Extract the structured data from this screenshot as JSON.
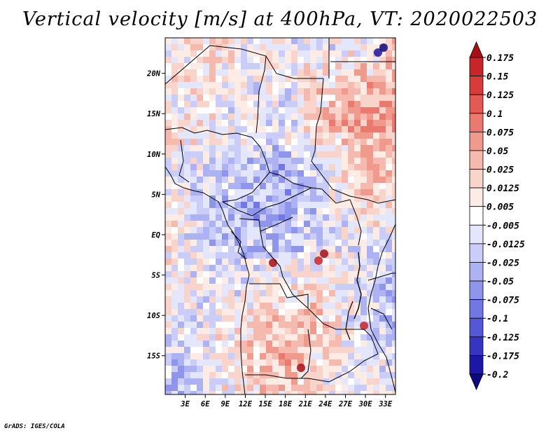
{
  "title": "Vertical velocity [m/s] at 400hPa, VT: 2020022503",
  "credit": "GrADS: IGES/COLA",
  "map": {
    "lat_labels": [
      "20N",
      "15N",
      "10N",
      "5N",
      "EQ",
      "5S",
      "10S",
      "15S"
    ],
    "lat_values": [
      20,
      15,
      10,
      5,
      0,
      -5,
      -10,
      -15
    ],
    "lon_labels": [
      "3E",
      "6E",
      "9E",
      "12E",
      "15E",
      "18E",
      "21E",
      "24E",
      "27E",
      "30E",
      "33E"
    ],
    "lon_values": [
      3,
      6,
      9,
      12,
      15,
      18,
      21,
      24,
      27,
      30,
      33
    ],
    "lon_range": [
      0,
      34.5
    ],
    "lat_range": [
      -19.8,
      24.4
    ]
  },
  "colorbar": {
    "labels": [
      "0.175",
      "0.15",
      "0.125",
      "0.1",
      "0.075",
      "0.05",
      "0.025",
      "0.0125",
      "0.005",
      "-0.005",
      "-0.0125",
      "-0.025",
      "-0.05",
      "-0.075",
      "-0.1",
      "-0.125",
      "-0.175",
      "-0.2"
    ],
    "colors": [
      "#a50f15",
      "#c8252b",
      "#d93a3a",
      "#e35a55",
      "#ea7a70",
      "#f09a8e",
      "#f5b9ad",
      "#f9d4cb",
      "#fdebe6",
      "#ffffff",
      "#e4e6fb",
      "#c9cdf7",
      "#adb2f2",
      "#9095ec",
      "#7278e3",
      "#5458d6",
      "#3535c2",
      "#1c17a6",
      "#0d0a80"
    ]
  }
}
